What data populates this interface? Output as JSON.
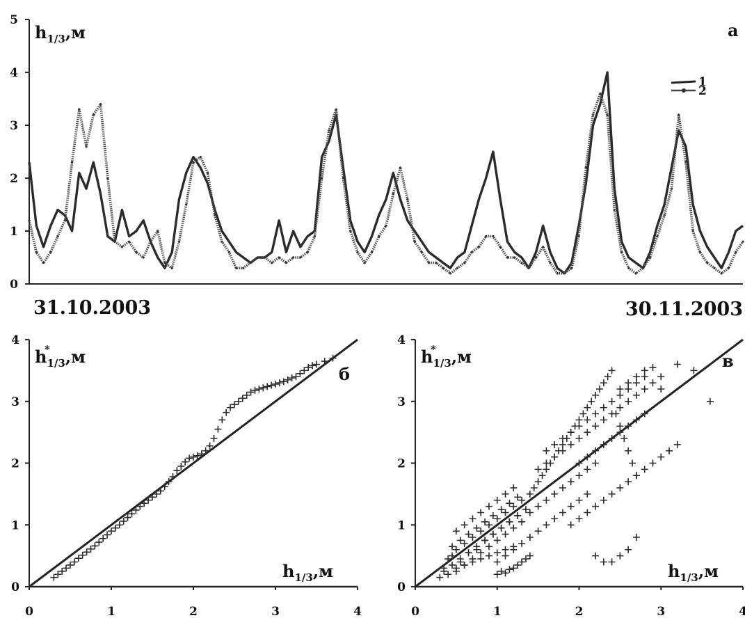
{
  "chart_data": [
    {
      "panel": "a",
      "type": "line",
      "panel_label": "а",
      "ylabel": "h",
      "ylabel_sub": "1/3",
      "ylabel_unit": ",м",
      "xlabel_start": "31.10.2003",
      "xlabel_end": "30.11.2003",
      "xlim": [
        0,
        30
      ],
      "ylim": [
        0,
        5
      ],
      "yticks": [
        "0",
        "1",
        "2",
        "3",
        "4",
        "5"
      ],
      "legend": {
        "position": "top-right",
        "entries": [
          "1",
          "2"
        ]
      },
      "series": [
        {
          "name": "1",
          "x": [
            0,
            0.3,
            0.6,
            0.9,
            1.2,
            1.5,
            1.8,
            2.1,
            2.4,
            2.7,
            3.0,
            3.3,
            3.6,
            3.9,
            4.2,
            4.5,
            4.8,
            5.1,
            5.4,
            5.7,
            6.0,
            6.3,
            6.6,
            6.9,
            7.2,
            7.5,
            7.8,
            8.1,
            8.4,
            8.7,
            9.0,
            9.3,
            9.6,
            9.9,
            10.2,
            10.5,
            10.8,
            11.1,
            11.4,
            11.7,
            12.0,
            12.3,
            12.6,
            12.9,
            13.2,
            13.5,
            13.8,
            14.1,
            14.4,
            14.7,
            15.0,
            15.3,
            15.6,
            15.9,
            16.2,
            16.5,
            16.8,
            17.1,
            17.4,
            17.7,
            18.0,
            18.3,
            18.6,
            18.9,
            19.2,
            19.5,
            19.8,
            20.1,
            20.4,
            20.7,
            21.0,
            21.3,
            21.6,
            21.9,
            22.2,
            22.5,
            22.8,
            23.1,
            23.4,
            23.7,
            24.0,
            24.3,
            24.6,
            24.9,
            25.2,
            25.5,
            25.8,
            26.1,
            26.4,
            26.7,
            27.0,
            27.3,
            27.6,
            27.9,
            28.2,
            28.5,
            28.8,
            29.1,
            29.4,
            29.7,
            30.0
          ],
          "values": [
            2.3,
            1.1,
            0.7,
            1.1,
            1.4,
            1.3,
            1.0,
            2.1,
            1.8,
            2.3,
            1.7,
            0.9,
            0.8,
            1.4,
            0.9,
            1.0,
            1.2,
            0.8,
            0.5,
            0.3,
            0.6,
            1.6,
            2.1,
            2.4,
            2.2,
            1.9,
            1.4,
            1.0,
            0.8,
            0.6,
            0.5,
            0.4,
            0.5,
            0.5,
            0.6,
            1.2,
            0.6,
            1.0,
            0.7,
            0.9,
            1.0,
            2.4,
            2.7,
            3.2,
            2.2,
            1.2,
            0.8,
            0.6,
            0.9,
            1.3,
            1.6,
            2.1,
            1.6,
            1.2,
            1.0,
            0.8,
            0.6,
            0.5,
            0.4,
            0.3,
            0.5,
            0.6,
            1.1,
            1.6,
            2.0,
            2.5,
            1.6,
            0.8,
            0.6,
            0.5,
            0.3,
            0.6,
            1.1,
            0.6,
            0.3,
            0.2,
            0.4,
            1.1,
            1.9,
            3.0,
            3.4,
            4.0,
            1.8,
            0.8,
            0.5,
            0.4,
            0.3,
            0.6,
            1.1,
            1.5,
            2.2,
            2.9,
            2.6,
            1.5,
            1.0,
            0.7,
            0.5,
            0.3,
            0.6,
            1.0,
            1.1
          ]
        },
        {
          "name": "2",
          "x": [
            0,
            0.3,
            0.6,
            0.9,
            1.2,
            1.5,
            1.8,
            2.1,
            2.4,
            2.7,
            3.0,
            3.3,
            3.6,
            3.9,
            4.2,
            4.5,
            4.8,
            5.1,
            5.4,
            5.7,
            6.0,
            6.3,
            6.6,
            6.9,
            7.2,
            7.5,
            7.8,
            8.1,
            8.4,
            8.7,
            9.0,
            9.3,
            9.6,
            9.9,
            10.2,
            10.5,
            10.8,
            11.1,
            11.4,
            11.7,
            12.0,
            12.3,
            12.6,
            12.9,
            13.2,
            13.5,
            13.8,
            14.1,
            14.4,
            14.7,
            15.0,
            15.3,
            15.6,
            15.9,
            16.2,
            16.5,
            16.8,
            17.1,
            17.4,
            17.7,
            18.0,
            18.3,
            18.6,
            18.9,
            19.2,
            19.5,
            19.8,
            20.1,
            20.4,
            20.7,
            21.0,
            21.3,
            21.6,
            21.9,
            22.2,
            22.5,
            22.8,
            23.1,
            23.4,
            23.7,
            24.0,
            24.3,
            24.6,
            24.9,
            25.2,
            25.5,
            25.8,
            26.1,
            26.4,
            26.7,
            27.0,
            27.3,
            27.6,
            27.9,
            28.2,
            28.5,
            28.8,
            29.1,
            29.4,
            29.7,
            30.0
          ],
          "values": [
            1.2,
            0.6,
            0.4,
            0.6,
            0.9,
            1.2,
            2.3,
            3.3,
            2.6,
            3.2,
            3.4,
            2.0,
            0.8,
            0.7,
            0.8,
            0.6,
            0.5,
            0.8,
            1.0,
            0.4,
            0.3,
            0.8,
            1.5,
            2.3,
            2.4,
            2.1,
            1.3,
            0.8,
            0.6,
            0.3,
            0.3,
            0.4,
            0.5,
            0.5,
            0.4,
            0.5,
            0.4,
            0.5,
            0.5,
            0.6,
            0.9,
            2.0,
            2.9,
            3.3,
            2.0,
            1.0,
            0.6,
            0.4,
            0.6,
            0.9,
            1.1,
            1.7,
            2.2,
            1.6,
            0.8,
            0.6,
            0.4,
            0.4,
            0.3,
            0.2,
            0.3,
            0.4,
            0.6,
            0.7,
            0.9,
            0.9,
            0.7,
            0.5,
            0.5,
            0.4,
            0.3,
            0.5,
            0.7,
            0.4,
            0.2,
            0.2,
            0.3,
            0.9,
            2.2,
            3.2,
            3.6,
            3.2,
            1.4,
            0.6,
            0.3,
            0.2,
            0.3,
            0.5,
            0.9,
            1.3,
            1.8,
            3.2,
            2.3,
            1.0,
            0.6,
            0.4,
            0.3,
            0.2,
            0.3,
            0.6,
            0.8
          ]
        }
      ]
    },
    {
      "panel": "b",
      "type": "scatter",
      "panel_label": "б",
      "ylabel": "h",
      "ylabel_sub": "1/3",
      "ylabel_unit": ",м",
      "ylabel_mark": "*",
      "xlabel": "h",
      "xlabel_sub": "1/3",
      "xlabel_unit": ",м",
      "xlim": [
        0,
        4
      ],
      "ylim": [
        0,
        4
      ],
      "xticks": [
        "0",
        "1",
        "2",
        "3",
        "4"
      ],
      "yticks": [
        "0",
        "1",
        "2",
        "3",
        "4"
      ],
      "reference_line": {
        "x": [
          0,
          4
        ],
        "y": [
          0,
          4
        ]
      },
      "points": {
        "x": [
          0.3,
          0.35,
          0.4,
          0.45,
          0.5,
          0.55,
          0.6,
          0.65,
          0.7,
          0.75,
          0.8,
          0.85,
          0.9,
          0.95,
          1.0,
          1.05,
          1.1,
          1.15,
          1.2,
          1.25,
          1.3,
          1.35,
          1.4,
          1.45,
          1.5,
          1.55,
          1.6,
          1.65,
          1.7,
          1.75,
          1.8,
          1.85,
          1.9,
          1.95,
          2.0,
          2.05,
          2.1,
          2.15,
          2.2,
          2.25,
          2.3,
          2.35,
          2.4,
          2.45,
          2.5,
          2.55,
          2.6,
          2.65,
          2.7,
          2.75,
          2.8,
          2.85,
          2.9,
          2.95,
          3.0,
          3.05,
          3.1,
          3.15,
          3.2,
          3.25,
          3.3,
          3.35,
          3.4,
          3.45,
          3.5,
          3.6,
          3.7
        ],
        "y": [
          0.15,
          0.2,
          0.25,
          0.3,
          0.35,
          0.4,
          0.46,
          0.51,
          0.56,
          0.61,
          0.66,
          0.72,
          0.78,
          0.84,
          0.9,
          0.95,
          1.0,
          1.06,
          1.12,
          1.18,
          1.24,
          1.3,
          1.35,
          1.4,
          1.45,
          1.5,
          1.55,
          1.62,
          1.7,
          1.78,
          1.88,
          1.95,
          2.02,
          2.08,
          2.1,
          2.12,
          2.15,
          2.2,
          2.28,
          2.4,
          2.55,
          2.7,
          2.82,
          2.9,
          2.95,
          3.0,
          3.05,
          3.1,
          3.15,
          3.18,
          3.2,
          3.22,
          3.24,
          3.26,
          3.28,
          3.3,
          3.32,
          3.35,
          3.38,
          3.4,
          3.45,
          3.5,
          3.55,
          3.58,
          3.6,
          3.65,
          3.7
        ]
      }
    },
    {
      "panel": "c",
      "type": "scatter",
      "panel_label": "в",
      "ylabel": "h",
      "ylabel_sub": "1/3",
      "ylabel_unit": ",м",
      "ylabel_mark": "*",
      "xlabel": "h",
      "xlabel_sub": "1/3",
      "xlabel_unit": ",м",
      "xlim": [
        0,
        4
      ],
      "ylim": [
        0,
        4
      ],
      "xticks": [
        "0",
        "1",
        "2",
        "3",
        "4"
      ],
      "yticks": [
        "0",
        "1",
        "2",
        "3",
        "4"
      ],
      "reference_line": {
        "x": [
          0,
          4
        ],
        "y": [
          0,
          4
        ]
      },
      "points": {
        "x": [
          0.35,
          0.4,
          0.45,
          0.5,
          0.55,
          0.6,
          0.65,
          0.7,
          0.75,
          0.8,
          0.85,
          0.9,
          0.95,
          1.0,
          1.05,
          1.1,
          1.15,
          1.2,
          1.25,
          1.3,
          0.4,
          0.5,
          0.6,
          0.7,
          0.8,
          0.9,
          1.0,
          1.1,
          1.2,
          1.3,
          0.45,
          0.55,
          0.65,
          0.75,
          0.85,
          0.95,
          1.05,
          1.15,
          1.25,
          0.5,
          0.6,
          0.7,
          0.8,
          0.9,
          1.0,
          1.1,
          1.2,
          0.3,
          0.35,
          0.45,
          0.55,
          0.65,
          0.75,
          0.85,
          0.95,
          1.05,
          1.15,
          1.25,
          1.35,
          1.4,
          1.45,
          1.5,
          1.55,
          1.6,
          1.65,
          1.7,
          1.75,
          1.8,
          1.85,
          1.9,
          1.95,
          2.0,
          2.05,
          2.1,
          2.15,
          2.2,
          2.25,
          2.3,
          2.35,
          2.4,
          2.45,
          2.5,
          2.55,
          2.6,
          2.65,
          2.7,
          1.6,
          1.7,
          1.8,
          1.9,
          2.0,
          2.1,
          2.2,
          2.3,
          2.4,
          2.5,
          2.6,
          2.7,
          2.8,
          1.5,
          1.6,
          1.7,
          1.8,
          1.9,
          2.0,
          2.1,
          2.2,
          2.3,
          2.4,
          2.5,
          1.4,
          1.5,
          1.6,
          1.7,
          1.8,
          1.9,
          2.0,
          2.1,
          2.2,
          1.9,
          2.0,
          2.1,
          2.2,
          2.3,
          2.4,
          2.5,
          2.6,
          2.7,
          2.8,
          2.9,
          3.0,
          3.1,
          3.2,
          2.0,
          2.1,
          2.2,
          2.3,
          2.4,
          2.5,
          2.6,
          2.7,
          2.8,
          2.6,
          2.7,
          2.8,
          2.9,
          3.0,
          2.5,
          2.6,
          2.7,
          2.8,
          2.9,
          3.0,
          3.2,
          3.4,
          3.6,
          1.0,
          1.1,
          1.2,
          1.3,
          1.4,
          1.5,
          1.6,
          1.7,
          1.8,
          1.9,
          2.0,
          2.1,
          2.2,
          2.3,
          2.4,
          2.5,
          2.6,
          2.7,
          0.5,
          0.6,
          0.7,
          0.8,
          0.9,
          1.0,
          1.1,
          1.2,
          1.0,
          1.05,
          1.1,
          1.15,
          1.2,
          1.25,
          1.3,
          1.35,
          1.4
        ],
        "y": [
          0.3,
          0.45,
          0.5,
          0.6,
          0.4,
          0.7,
          0.55,
          0.8,
          0.6,
          0.9,
          0.75,
          1.0,
          0.85,
          1.1,
          0.95,
          1.2,
          1.05,
          1.3,
          1.15,
          1.4,
          0.2,
          0.25,
          0.35,
          0.45,
          0.55,
          0.65,
          0.75,
          0.85,
          0.95,
          1.05,
          0.65,
          0.75,
          0.85,
          0.95,
          1.05,
          1.15,
          1.25,
          1.35,
          1.45,
          0.9,
          1.0,
          1.1,
          1.2,
          1.3,
          1.4,
          1.5,
          1.6,
          0.15,
          0.25,
          0.35,
          0.45,
          0.55,
          0.65,
          0.75,
          0.85,
          0.95,
          1.05,
          1.15,
          1.25,
          1.5,
          1.6,
          1.7,
          1.8,
          1.9,
          2.0,
          2.1,
          2.2,
          2.3,
          2.4,
          2.5,
          2.6,
          2.7,
          2.8,
          2.9,
          3.0,
          3.1,
          3.2,
          3.3,
          3.4,
          3.5,
          2.8,
          2.6,
          2.4,
          2.2,
          2.0,
          1.8,
          2.2,
          2.3,
          2.4,
          2.5,
          2.6,
          2.7,
          2.8,
          2.9,
          3.0,
          3.1,
          3.2,
          3.3,
          3.4,
          1.9,
          2.0,
          2.1,
          2.2,
          2.3,
          2.4,
          2.5,
          2.6,
          2.7,
          2.8,
          2.9,
          1.2,
          1.3,
          1.4,
          1.5,
          1.6,
          1.7,
          1.8,
          1.9,
          2.0,
          1.0,
          1.1,
          1.2,
          1.3,
          1.4,
          1.5,
          1.6,
          1.7,
          1.8,
          1.9,
          2.0,
          2.1,
          2.2,
          2.3,
          2.0,
          2.1,
          2.2,
          2.3,
          2.4,
          2.5,
          2.6,
          2.7,
          2.8,
          3.0,
          3.1,
          3.2,
          3.3,
          3.4,
          3.2,
          3.3,
          3.4,
          3.5,
          3.55,
          3.2,
          3.6,
          3.5,
          3.0,
          0.4,
          0.5,
          0.6,
          0.7,
          0.8,
          0.9,
          1.0,
          1.1,
          1.2,
          1.3,
          1.4,
          1.5,
          0.5,
          0.4,
          0.4,
          0.5,
          0.6,
          0.8,
          0.3,
          0.35,
          0.4,
          0.45,
          0.5,
          0.55,
          0.6,
          0.65,
          0.2,
          0.25,
          0.22,
          0.28,
          0.3,
          0.35,
          0.4,
          0.45,
          0.5
        ]
      }
    }
  ]
}
